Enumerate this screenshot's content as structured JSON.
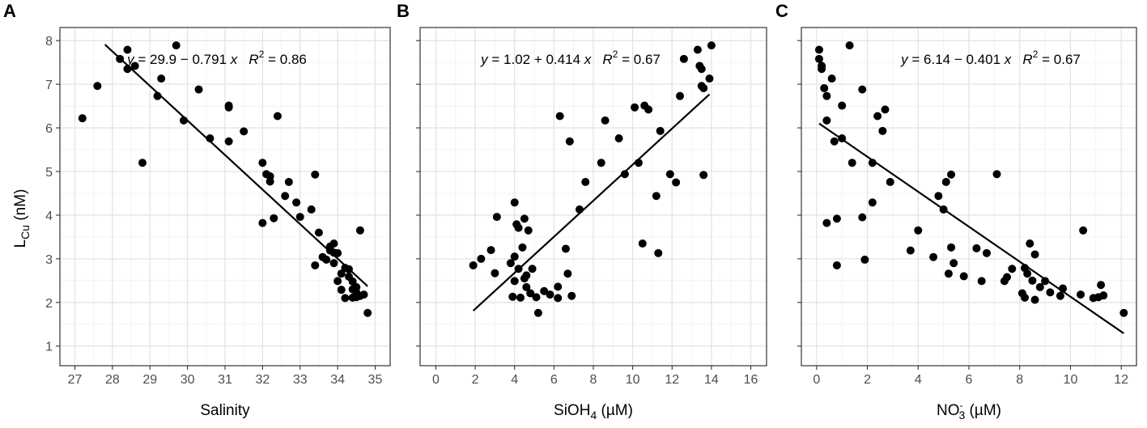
{
  "y_axis": {
    "label_main": "L",
    "label_sub": "Cu",
    "label_unit": " (nM)"
  },
  "chart_data": [
    {
      "type": "scatter",
      "panel": "A",
      "xlabel_parts": {
        "main": "Salinity"
      },
      "ylabel": "LCu (nM)",
      "xlim": [
        26.6,
        35.4
      ],
      "ylim": [
        0.55,
        8.3
      ],
      "xticks": [
        27,
        28,
        29,
        30,
        31,
        32,
        33,
        34,
        35
      ],
      "yticks": [
        1,
        2,
        3,
        4,
        5,
        6,
        7,
        8
      ],
      "equation": {
        "y_part": "y",
        "mid": " = 29.9 − 0.791 ",
        "x_part": "x",
        "r_part": "R",
        "r_exp": "2",
        "r_val": " = 0.86"
      },
      "fit": {
        "x": [
          27.8,
          34.8
        ],
        "y": [
          7.91,
          2.37
        ]
      },
      "x": [
        27.2,
        27.6,
        28.2,
        28.4,
        28.4,
        28.6,
        28.8,
        29.2,
        29.3,
        29.7,
        29.9,
        30.3,
        30.6,
        31.1,
        31.1,
        31.1,
        31.5,
        32.0,
        32.1,
        32.2,
        32.2,
        32.3,
        32.4,
        32.6,
        32.7,
        32.9,
        33.0,
        33.3,
        33.4,
        33.4,
        33.5,
        33.6,
        33.7,
        33.8,
        33.8,
        33.9,
        33.9,
        34.0,
        34.0,
        34.1,
        34.1,
        34.2,
        34.3,
        34.3,
        34.4,
        34.4,
        34.5,
        34.5,
        34.6,
        34.6,
        34.7,
        34.8,
        34.2,
        34.4,
        34.5,
        33.9,
        32.0
      ],
      "y": [
        6.22,
        6.96,
        7.58,
        7.79,
        7.35,
        7.42,
        5.2,
        6.73,
        7.13,
        7.89,
        6.17,
        6.88,
        5.76,
        6.47,
        6.51,
        5.69,
        5.92,
        5.2,
        4.94,
        4.77,
        4.89,
        3.93,
        6.27,
        4.44,
        4.76,
        4.29,
        3.96,
        4.13,
        2.85,
        4.93,
        3.6,
        3.04,
        2.98,
        3.28,
        3.19,
        3.14,
        2.9,
        2.49,
        3.13,
        2.66,
        2.29,
        2.79,
        2.76,
        2.59,
        2.48,
        2.11,
        2.23,
        2.35,
        2.15,
        3.65,
        2.18,
        1.76,
        2.1,
        2.3,
        2.12,
        3.35,
        3.82
      ]
    },
    {
      "type": "scatter",
      "panel": "B",
      "xlabel_parts": {
        "main": "SiOH",
        "sub": "4",
        "tail": " (µM)"
      },
      "ylabel": "LCu (nM)",
      "xlim": [
        -0.8,
        16.8
      ],
      "ylim": [
        0.55,
        8.3
      ],
      "xticks": [
        0,
        2,
        4,
        6,
        8,
        10,
        12,
        14,
        16
      ],
      "yticks": [
        1,
        2,
        3,
        4,
        5,
        6,
        7,
        8
      ],
      "equation": {
        "y_part": "y",
        "mid": " = 1.02 + 0.414 ",
        "x_part": "x",
        "r_part": "R",
        "r_exp": "2",
        "r_val": " = 0.67"
      },
      "fit": {
        "x": [
          1.9,
          13.9
        ],
        "y": [
          1.81,
          6.77
        ]
      },
      "x": [
        1.9,
        2.3,
        2.8,
        3.0,
        3.1,
        3.8,
        3.9,
        4.0,
        4.0,
        4.0,
        4.1,
        4.2,
        4.2,
        4.3,
        4.4,
        4.5,
        4.5,
        4.6,
        4.6,
        4.7,
        4.8,
        4.9,
        5.1,
        5.2,
        5.5,
        5.8,
        6.2,
        6.2,
        6.3,
        6.6,
        6.7,
        6.8,
        6.9,
        7.3,
        7.6,
        8.4,
        8.6,
        9.3,
        9.6,
        10.1,
        10.3,
        10.5,
        10.6,
        10.8,
        11.2,
        11.3,
        11.4,
        11.9,
        12.2,
        12.4,
        12.6,
        13.3,
        13.4,
        13.5,
        13.6,
        13.6,
        13.9,
        14.0,
        13.5
      ],
      "y": [
        2.85,
        3.0,
        3.2,
        2.67,
        3.96,
        2.9,
        2.13,
        4.29,
        3.05,
        2.49,
        3.79,
        3.71,
        2.77,
        2.11,
        3.26,
        2.55,
        3.92,
        2.35,
        2.62,
        3.65,
        2.21,
        2.77,
        2.12,
        1.76,
        2.26,
        2.18,
        2.1,
        2.36,
        6.27,
        3.23,
        2.66,
        5.69,
        2.15,
        4.13,
        4.76,
        5.2,
        6.17,
        5.76,
        4.94,
        6.47,
        5.2,
        3.35,
        6.51,
        6.42,
        4.44,
        3.13,
        5.93,
        4.94,
        4.75,
        6.73,
        7.58,
        7.79,
        7.42,
        7.35,
        6.91,
        4.92,
        7.13,
        7.89,
        6.96
      ]
    },
    {
      "type": "scatter",
      "panel": "C",
      "xlabel_parts": {
        "main": "NO",
        "sub": "3",
        "sup": "-",
        "tail": " (µM)"
      },
      "ylabel": "LCu (nM)",
      "xlim": [
        -0.6,
        12.6
      ],
      "ylim": [
        0.55,
        8.3
      ],
      "xticks": [
        0,
        2,
        4,
        6,
        8,
        10,
        12
      ],
      "yticks": [
        1,
        2,
        3,
        4,
        5,
        6,
        7,
        8
      ],
      "equation": {
        "y_part": "y",
        "mid": " = 6.14 − 0.401 ",
        "x_part": "x",
        "r_part": "R",
        "r_exp": "2",
        "r_val": " = 0.67"
      },
      "fit": {
        "x": [
          0.1,
          12.1
        ],
        "y": [
          6.1,
          1.29
        ]
      },
      "x": [
        0.1,
        0.1,
        0.2,
        0.2,
        0.3,
        0.4,
        0.4,
        0.4,
        0.6,
        0.7,
        0.8,
        0.8,
        1.0,
        1.0,
        1.3,
        1.4,
        1.8,
        1.8,
        1.9,
        2.2,
        2.2,
        2.4,
        2.6,
        2.7,
        2.9,
        3.7,
        4.0,
        4.6,
        4.8,
        5.0,
        5.1,
        5.2,
        5.3,
        5.3,
        5.4,
        5.8,
        6.3,
        6.5,
        6.7,
        7.1,
        7.4,
        7.5,
        7.7,
        8.1,
        8.2,
        8.2,
        8.3,
        8.4,
        8.5,
        8.6,
        8.6,
        8.8,
        9.0,
        9.2,
        9.6,
        9.7,
        10.4,
        10.5,
        10.9,
        11.1,
        11.2,
        11.3,
        12.1
      ],
      "y": [
        7.79,
        7.58,
        7.42,
        7.35,
        6.91,
        3.82,
        6.17,
        6.73,
        7.13,
        5.69,
        3.92,
        2.85,
        6.51,
        5.76,
        7.89,
        5.2,
        6.88,
        3.95,
        2.98,
        5.2,
        4.29,
        6.27,
        5.93,
        6.42,
        4.76,
        3.19,
        3.65,
        3.04,
        4.44,
        4.13,
        4.76,
        2.66,
        4.93,
        3.26,
        2.9,
        2.6,
        3.24,
        2.49,
        3.13,
        4.94,
        2.49,
        2.58,
        2.77,
        2.21,
        2.11,
        2.79,
        2.66,
        3.35,
        2.5,
        2.06,
        3.1,
        2.35,
        2.49,
        2.23,
        2.15,
        2.32,
        2.18,
        3.65,
        2.1,
        2.12,
        2.4,
        2.16,
        1.76
      ]
    }
  ]
}
